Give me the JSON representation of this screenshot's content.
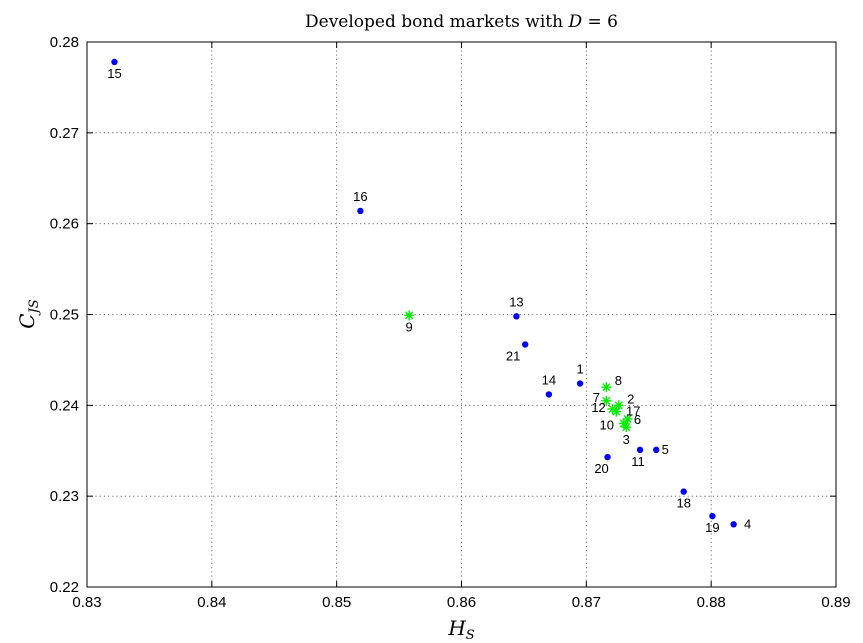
{
  "chart_data": {
    "type": "scatter",
    "title": "Developed bond markets with D = 6",
    "xlabel": "H_S",
    "ylabel": "C_JS",
    "xlim": [
      0.83,
      0.89
    ],
    "ylim": [
      0.22,
      0.28
    ],
    "xticks": [
      "0.83",
      "0.84",
      "0.85",
      "0.86",
      "0.87",
      "0.88",
      "0.89"
    ],
    "yticks": [
      "0.22",
      "0.23",
      "0.24",
      "0.25",
      "0.26",
      "0.27",
      "0.28"
    ],
    "grid": true,
    "series": [
      {
        "marker": "dot",
        "color": "#0000ff",
        "points": [
          {
            "label": "15",
            "x": 0.8322,
            "y": 0.2778
          },
          {
            "label": "16",
            "x": 0.8519,
            "y": 0.2614
          },
          {
            "label": "13",
            "x": 0.8644,
            "y": 0.2498
          },
          {
            "label": "21",
            "x": 0.8651,
            "y": 0.2467
          },
          {
            "label": "14",
            "x": 0.867,
            "y": 0.2412
          },
          {
            "label": "1",
            "x": 0.8695,
            "y": 0.2424
          },
          {
            "label": "20",
            "x": 0.8717,
            "y": 0.2343
          },
          {
            "label": "11",
            "x": 0.8743,
            "y": 0.2351
          },
          {
            "label": "5",
            "x": 0.8756,
            "y": 0.2351
          },
          {
            "label": "18",
            "x": 0.8778,
            "y": 0.2305
          },
          {
            "label": "19",
            "x": 0.8801,
            "y": 0.2278
          },
          {
            "label": "4",
            "x": 0.8818,
            "y": 0.2269
          }
        ]
      },
      {
        "marker": "star",
        "color": "#00ee00",
        "points": [
          {
            "label": "9",
            "x": 0.8558,
            "y": 0.2499
          },
          {
            "label": "8",
            "x": 0.8716,
            "y": 0.242
          },
          {
            "label": "7",
            "x": 0.8716,
            "y": 0.2405
          },
          {
            "label": "12",
            "x": 0.8721,
            "y": 0.2396
          },
          {
            "label": "2",
            "x": 0.8726,
            "y": 0.24
          },
          {
            "label": "17",
            "x": 0.8724,
            "y": 0.2393
          },
          {
            "label": "6",
            "x": 0.8733,
            "y": 0.2385
          },
          {
            "label": "10",
            "x": 0.873,
            "y": 0.238
          },
          {
            "label": "3",
            "x": 0.8732,
            "y": 0.2376
          }
        ]
      }
    ]
  }
}
